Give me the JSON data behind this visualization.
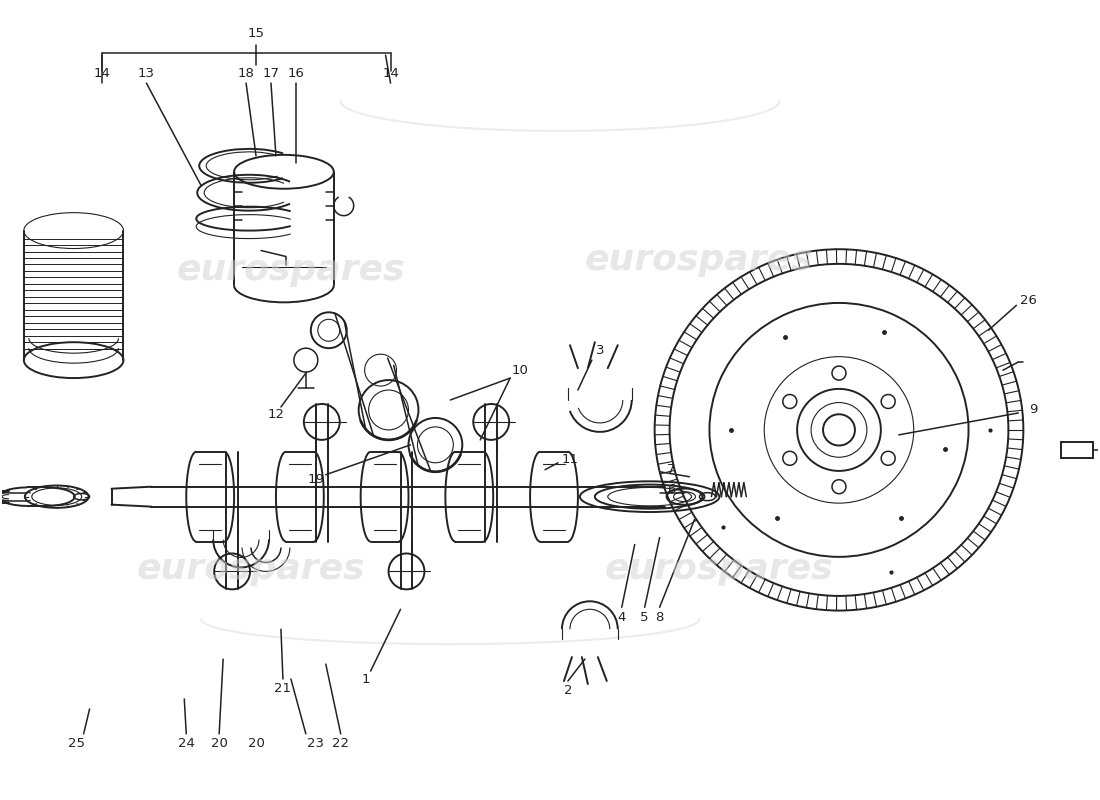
{
  "bg_color": "#ffffff",
  "line_color": "#222222",
  "watermark_color": "#d0d0d0",
  "watermark_text": "eurospares",
  "fig_width": 11.0,
  "fig_height": 8.0,
  "label_fontsize": 9.5,
  "watermark_fontsize": 26
}
